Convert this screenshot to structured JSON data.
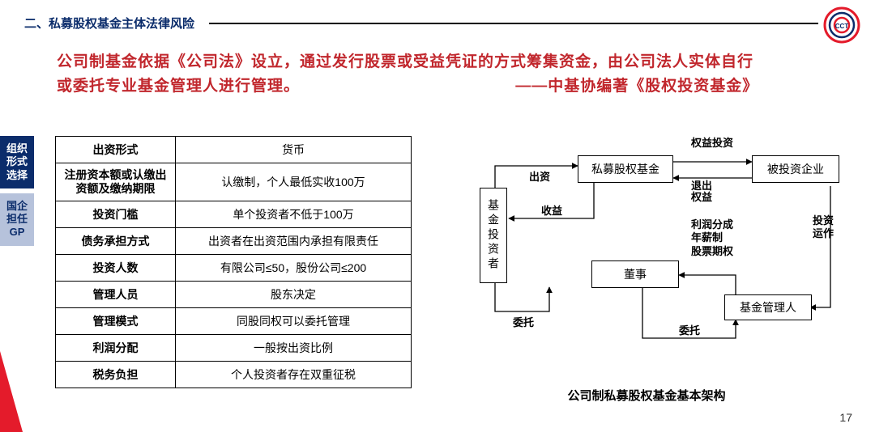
{
  "header": {
    "title": "二、私募股权基金主体法律风险"
  },
  "logo": {
    "text": "CCT",
    "ring1": "#e41b2b",
    "ring2": "#0b2c6b"
  },
  "intro": {
    "line1": "公司制基金依据《公司法》设立，通过发行股票或受益凭证的方式筹集资金，由公司法人实体自行",
    "line2a": "或委托专业基金管理人进行管理。",
    "line2b": "——中基协编著《股权投资基金》"
  },
  "tabs": {
    "t1": "组织形式选择",
    "t2": "国企担任GP"
  },
  "table": {
    "rows": [
      {
        "label": "出资形式",
        "value": "货币"
      },
      {
        "label": "注册资本额或认缴出资额及缴纳期限",
        "value": "认缴制，个人最低实收100万"
      },
      {
        "label": "投资门槛",
        "value": "单个投资者不低于100万"
      },
      {
        "label": "债务承担方式",
        "value": "出资者在出资范围内承担有限责任"
      },
      {
        "label": "投资人数",
        "value": "有限公司≤50，股份公司≤200"
      },
      {
        "label": "管理人员",
        "value": "股东决定"
      },
      {
        "label": "管理模式",
        "value": "同股同权可以委托管理"
      },
      {
        "label": "利润分配",
        "value": "一般按出资比例"
      },
      {
        "label": "税务负担",
        "value": "个人投资者存在双重征税"
      }
    ]
  },
  "diagram": {
    "nodes": {
      "investor": "基金投资者",
      "fund": "私募股权基金",
      "target": "被投资企业",
      "director": "董事",
      "manager": "基金管理人"
    },
    "labels": {
      "invest": "出资",
      "return": "收益",
      "equity_in": "权益投资",
      "equity_out": "退出权益",
      "operate": "投资运作",
      "profit": "利润分成\n年薪制\n股票期权",
      "entrust1": "委托",
      "entrust2": "委托"
    },
    "caption": "公司制私募股权基金基本架构",
    "colors": {
      "line": "#000000"
    }
  },
  "page": "17"
}
